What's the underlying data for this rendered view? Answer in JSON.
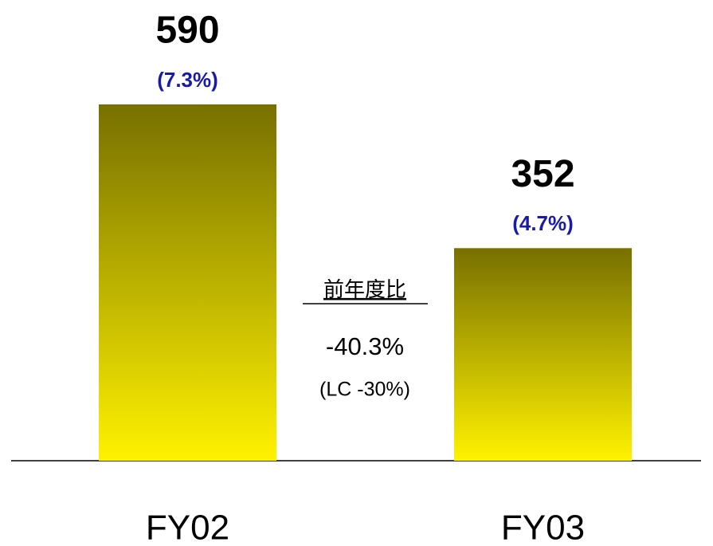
{
  "chart_data": {
    "type": "bar",
    "categories": [
      "FY02",
      "FY03"
    ],
    "values": [
      590,
      352
    ],
    "percent_labels": [
      "(7.3%)",
      "(4.7%)"
    ],
    "gradient": [
      "#777000",
      "#fff200"
    ],
    "annotation": {
      "title": "前年度比",
      "change": "-40.3%",
      "lc_change": "(LC -30%)"
    }
  }
}
